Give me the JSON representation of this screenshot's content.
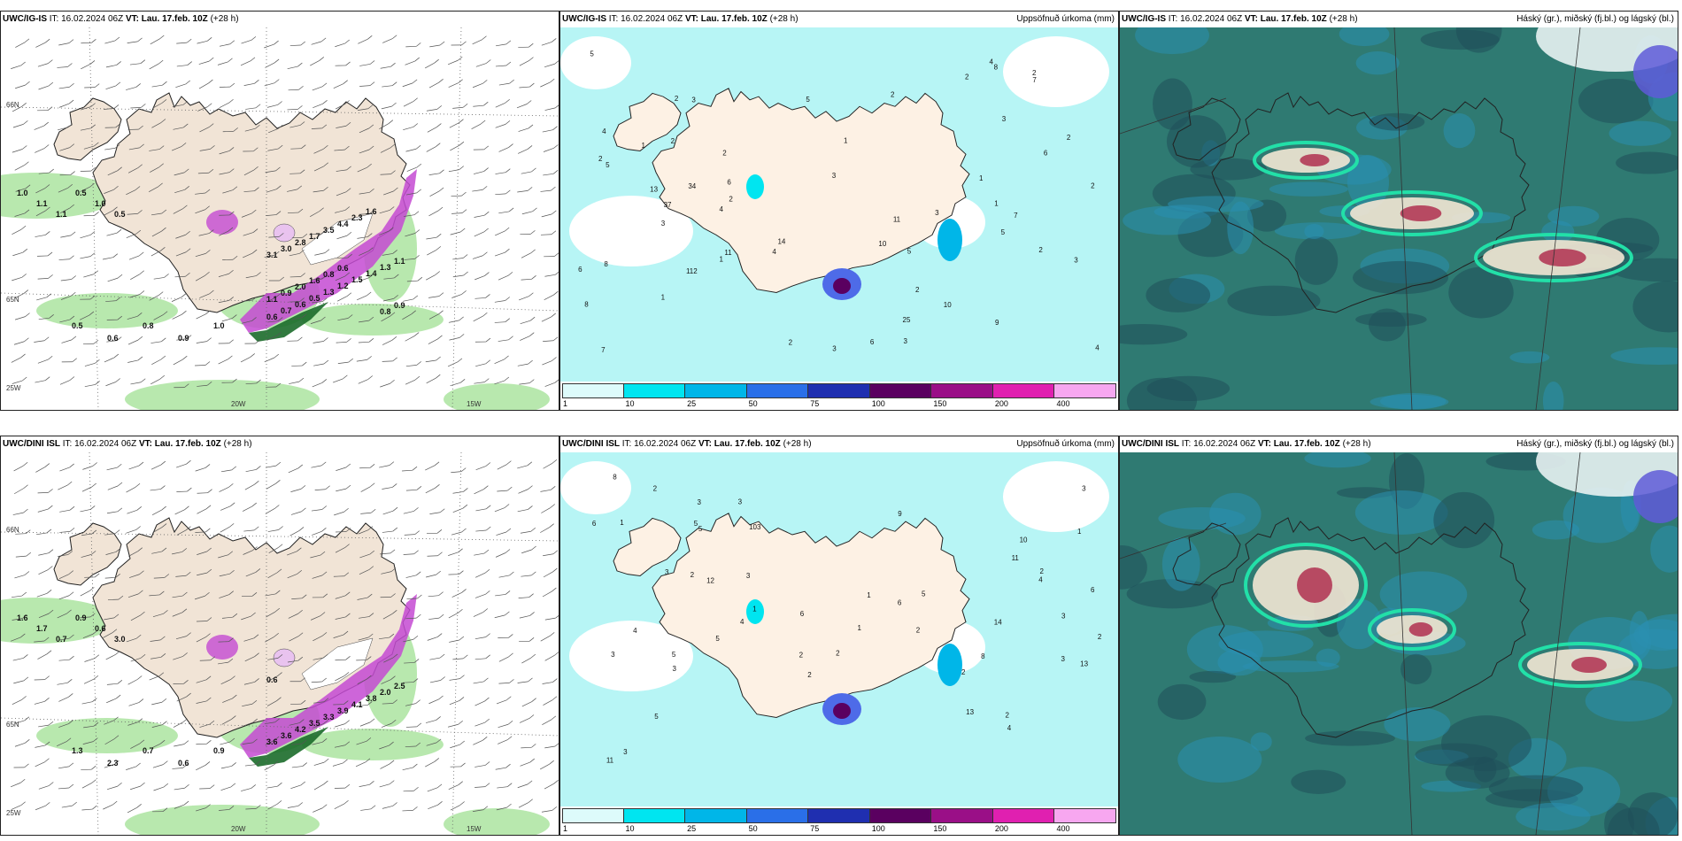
{
  "panels": [
    {
      "id": "p1",
      "model": "UWC/IG-IS",
      "it_label": "IT:",
      "it": "16.02.2024 06Z",
      "vt_label": "VT:",
      "vt": "Lau. 17.feb. 10Z",
      "lead": "(+28 h)",
      "right": "",
      "kind": "wind",
      "grid_labels": [
        "66N",
        "65N",
        "25W",
        "20W",
        "15W"
      ],
      "values": [
        "1.0",
        "1.1",
        "1.1",
        "0.5",
        "1.0",
        "0.5",
        "0.5",
        "0.6",
        "0.8",
        "0.9",
        "1.0",
        "0.6",
        "0.7",
        "0.6",
        "0.5",
        "1.3",
        "1.2",
        "1.5",
        "1.4",
        "1.3",
        "1.1",
        "3.1",
        "3.0",
        "2.8",
        "1.7",
        "3.5",
        "4.4",
        "2.3",
        "1.6",
        "0.8",
        "0.9",
        "1.1",
        "0.9",
        "2.0",
        "1.6",
        "0.8",
        "0.6"
      ]
    },
    {
      "id": "p2",
      "model": "UWC/IG-IS",
      "it_label": "IT:",
      "it": "16.02.2024 06Z",
      "vt_label": "VT:",
      "vt": "Lau. 17.feb. 10Z",
      "lead": "(+28 h)",
      "right": "Uppsöfnuð úrkoma (mm)",
      "kind": "precip",
      "values": [
        "3",
        "2",
        "3",
        "2",
        "1",
        "14",
        "3",
        "4",
        "4",
        "13",
        "7",
        "3",
        "4",
        "2",
        "8",
        "3",
        "2",
        "2",
        "1",
        "4",
        "5",
        "11",
        "5",
        "6",
        "2",
        "1",
        "7",
        "8",
        "25",
        "34",
        "112",
        "5",
        "5",
        "37",
        "10",
        "11",
        "6",
        "4",
        "6",
        "8",
        "3",
        "2",
        "2",
        "1",
        "2",
        "1",
        "2",
        "2",
        "5",
        "9",
        "10",
        "7",
        "2",
        "6",
        "1",
        "3",
        "2",
        "3"
      ],
      "cbar": {
        "ticks": [
          "1",
          "10",
          "25",
          "50",
          "75",
          "100",
          "150",
          "200",
          "400"
        ],
        "colors": [
          "#ddfbfb",
          "#00e5f0",
          "#00b6e8",
          "#2a6fe8",
          "#1f2fb0",
          "#5a0060",
          "#9a0f87",
          "#e020b0",
          "#f7a7f0"
        ]
      }
    },
    {
      "id": "p3",
      "model": "UWC/IG-IS",
      "it_label": "IT:",
      "it": "16.02.2024 06Z",
      "vt_label": "VT:",
      "vt": "Lau. 17.feb. 10Z",
      "lead": "(+28 h)",
      "right": "Háský (gr.), miðský (fj.bl.) og lágský (bl.)",
      "kind": "clouds"
    },
    {
      "id": "p4",
      "model": "UWC/DINI ISL",
      "it_label": "IT:",
      "it": "16.02.2024 06Z",
      "vt_label": "VT:",
      "vt": "Lau. 17.feb. 10Z",
      "lead": "(+28 h)",
      "right": "",
      "kind": "wind",
      "grid_labels": [
        "66N",
        "65N",
        "25W",
        "20W",
        "15W"
      ],
      "values": [
        "1.6",
        "1.7",
        "0.7",
        "0.9",
        "0.6",
        "3.0",
        "1.3",
        "2.3",
        "0.7",
        "0.6",
        "0.9",
        "3.6",
        "3.6",
        "4.2",
        "3.5",
        "3.3",
        "3.9",
        "4.1",
        "3.8",
        "2.0",
        "2.5",
        "0.6"
      ]
    },
    {
      "id": "p5",
      "model": "UWC/DINI ISL",
      "it_label": "IT:",
      "it": "16.02.2024 06Z",
      "vt_label": "VT:",
      "vt": "Lau. 17.feb. 10Z",
      "lead": "(+28 h)",
      "right": "Uppsöfnuð úrkoma (mm)",
      "kind": "precip",
      "values": [
        "1",
        "2",
        "2",
        "1",
        "1",
        "2",
        "3",
        "4",
        "3",
        "3",
        "1",
        "2",
        "1",
        "10",
        "5",
        "4",
        "5",
        "3",
        "3",
        "8",
        "13",
        "13",
        "11",
        "14",
        "6",
        "103",
        "8",
        "6",
        "3",
        "4",
        "3",
        "5",
        "12",
        "11",
        "6",
        "4",
        "2",
        "2",
        "3",
        "2",
        "5",
        "9",
        "3",
        "2",
        "2",
        "5",
        "6",
        "2",
        "5",
        "3"
      ],
      "cbar": {
        "ticks": [
          "1",
          "10",
          "25",
          "50",
          "75",
          "100",
          "150",
          "200",
          "400"
        ],
        "colors": [
          "#ddfbfb",
          "#00e5f0",
          "#00b6e8",
          "#2a6fe8",
          "#1f2fb0",
          "#5a0060",
          "#9a0f87",
          "#e020b0",
          "#f7a7f0"
        ]
      }
    },
    {
      "id": "p6",
      "model": "UWC/DINI ISL",
      "it_label": "IT:",
      "it": "16.02.2024 06Z",
      "vt_label": "VT:",
      "vt": "Lau. 17.feb. 10Z",
      "lead": "(+28 h)",
      "right": "Háský (gr.), miðský (fj.bl.) og lágský (bl.)",
      "kind": "clouds"
    }
  ],
  "colors": {
    "land": "#f1e4d6",
    "sea_precip": "#b7f5f5",
    "cloud_base": "#2f7a72",
    "cloud_dark": "#1f4e5a",
    "highcloud": "#22e0a8",
    "wet_green": "#1b6b2a",
    "snow_pink": "#c44ad2"
  }
}
